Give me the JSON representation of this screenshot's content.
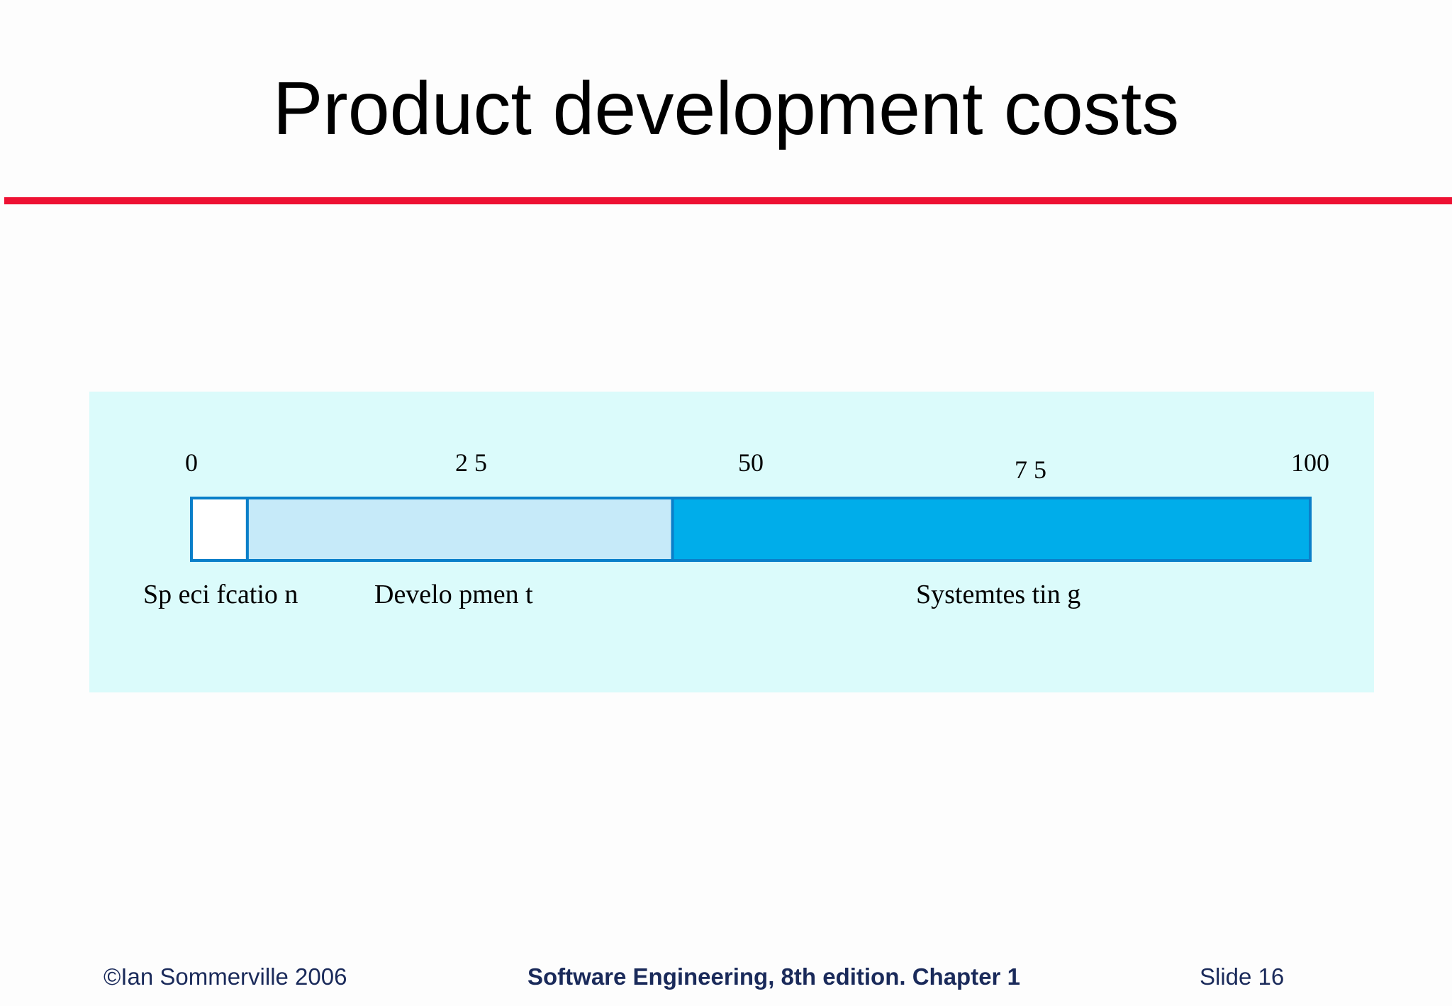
{
  "slide": {
    "title": "Product development costs",
    "rule_color": "#ee1133"
  },
  "chart_data": {
    "type": "bar",
    "orientation": "horizontal-stacked",
    "xlim": [
      0,
      100
    ],
    "ticks": [
      {
        "value": 0,
        "label": "0"
      },
      {
        "value": 25,
        "label": "2 5"
      },
      {
        "value": 50,
        "label": "50"
      },
      {
        "value": 75,
        "label": "7 5"
      },
      {
        "value": 100,
        "label": "100"
      }
    ],
    "segments": [
      {
        "name": "Specification",
        "label": "Sp eci fcatio n",
        "start": 0,
        "end": 5,
        "color": "#ffffff"
      },
      {
        "name": "Development",
        "label": "Develo pmen t",
        "start": 5,
        "end": 43,
        "color": "#c6eaf9"
      },
      {
        "name": "System testing",
        "label": "Systemtes tin g",
        "start": 43,
        "end": 100,
        "color": "#00adea"
      }
    ],
    "border_color": "#0a7fc9",
    "panel_color": "#dbfbfb"
  },
  "footer": {
    "left": "©Ian Sommerville 2006",
    "center": "Software Engineering, 8th edition. Chapter 1",
    "right": "Slide  16"
  }
}
